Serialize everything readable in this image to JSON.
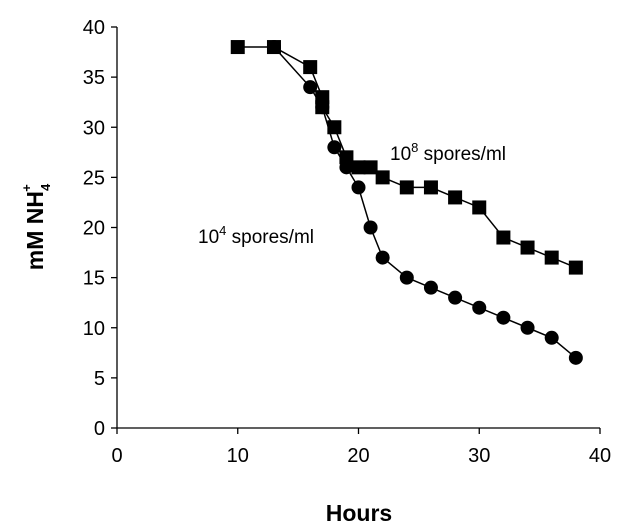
{
  "chart_data": {
    "type": "line",
    "xlabel": "Hours",
    "ylabel": {
      "main": "mM NH",
      "subscript": "4",
      "superscript": "+"
    },
    "xlim": [
      0,
      40
    ],
    "ylim": [
      0,
      40
    ],
    "x_ticks": [
      0,
      10,
      20,
      30,
      40
    ],
    "y_ticks": [
      0,
      5,
      10,
      15,
      20,
      25,
      30,
      35,
      40
    ],
    "grid": false,
    "series": [
      {
        "marker": "square",
        "color": "#000000",
        "x": [
          10,
          13,
          16,
          17,
          17,
          18,
          19,
          20,
          21,
          22,
          24,
          26,
          28,
          30,
          32,
          34,
          36,
          38
        ],
        "y": [
          38,
          38,
          36,
          33,
          32,
          30,
          27,
          26,
          26,
          25,
          24,
          24,
          23,
          22,
          19,
          18,
          17,
          16
        ]
      },
      {
        "marker": "circle",
        "color": "#000000",
        "x": [
          13,
          16,
          17,
          18,
          19,
          20,
          21,
          22,
          24,
          26,
          28,
          30,
          32,
          34,
          36,
          38
        ],
        "y": [
          38,
          34,
          32,
          28,
          26,
          24,
          20,
          17,
          15,
          14,
          13,
          12,
          11,
          10,
          9,
          7
        ]
      }
    ],
    "annotations": [
      {
        "base": "10",
        "exp": "8",
        "text": " spores/ml"
      },
      {
        "base": "10",
        "exp": "4",
        "text": " spores/ml"
      }
    ]
  }
}
